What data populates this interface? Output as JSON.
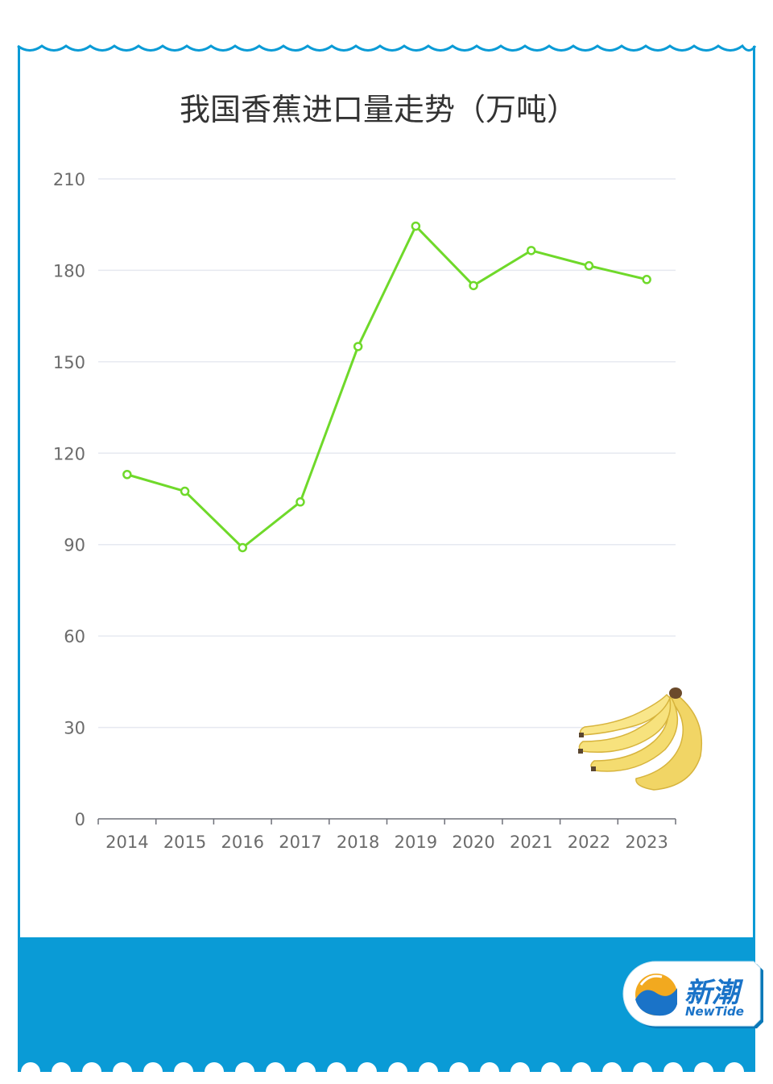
{
  "brand": {
    "name_cn": "新潮",
    "name_en": "NewTide"
  },
  "colors": {
    "frame_blue": "#0a9bd6",
    "line_green": "#6fd92a",
    "grid": "#e6e9f0",
    "text": "#333333",
    "tick_text": "#6b6b6b"
  },
  "icons": [
    "banana-icon",
    "newtide-logo-icon"
  ],
  "chart_data": {
    "type": "line",
    "title": "我国香蕉进口量走势（万吨）",
    "xlabel": "",
    "ylabel": "",
    "categories": [
      "2014",
      "2015",
      "2016",
      "2017",
      "2018",
      "2019",
      "2020",
      "2021",
      "2022",
      "2023"
    ],
    "series": [
      {
        "values": [
          113,
          107.5,
          89,
          104,
          155,
          194.5,
          175,
          186.5,
          181.5,
          177
        ]
      }
    ],
    "ylim": [
      0,
      210
    ],
    "yticks": [
      0,
      30,
      60,
      90,
      120,
      150,
      180,
      210
    ],
    "grid": true,
    "legend": "none"
  }
}
